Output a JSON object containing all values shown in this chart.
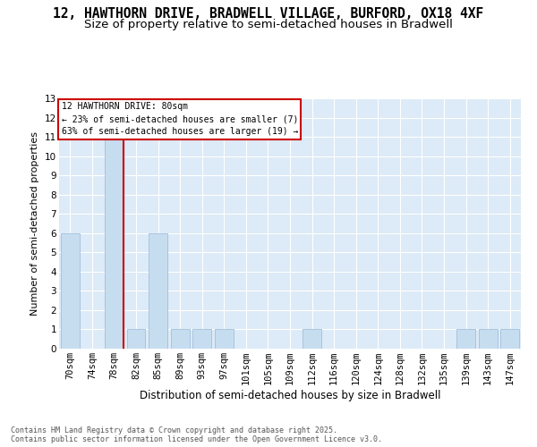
{
  "title1": "12, HAWTHORN DRIVE, BRADWELL VILLAGE, BURFORD, OX18 4XF",
  "title2": "Size of property relative to semi-detached houses in Bradwell",
  "xlabel": "Distribution of semi-detached houses by size in Bradwell",
  "ylabel": "Number of semi-detached properties",
  "categories": [
    "70sqm",
    "74sqm",
    "78sqm",
    "82sqm",
    "85sqm",
    "89sqm",
    "93sqm",
    "97sqm",
    "101sqm",
    "105sqm",
    "109sqm",
    "112sqm",
    "116sqm",
    "120sqm",
    "124sqm",
    "128sqm",
    "132sqm",
    "135sqm",
    "139sqm",
    "143sqm",
    "147sqm"
  ],
  "values": [
    6,
    0,
    11,
    1,
    6,
    1,
    1,
    1,
    0,
    0,
    0,
    1,
    0,
    0,
    0,
    0,
    0,
    0,
    1,
    1,
    1
  ],
  "highlight_index": 2,
  "bar_color": "#c6ddf0",
  "bar_edge_color": "#a0bedd",
  "highlight_line_color": "#cc0000",
  "annotation_line1": "12 HAWTHORN DRIVE: 80sqm",
  "annotation_line2": "← 23% of semi-detached houses are smaller (7)",
  "annotation_line3": "63% of semi-detached houses are larger (19) →",
  "annotation_box_color": "white",
  "annotation_box_edge": "#cc0000",
  "footer_text": "Contains HM Land Registry data © Crown copyright and database right 2025.\nContains public sector information licensed under the Open Government Licence v3.0.",
  "ylim_max": 13,
  "fig_bg": "#ffffff",
  "plot_bg": "#ddeaf7",
  "grid_color": "#ffffff",
  "title1_fontsize": 10.5,
  "title2_fontsize": 9.5,
  "ylabel_fontsize": 8,
  "xlabel_fontsize": 8.5,
  "tick_fontsize": 7.5,
  "footer_fontsize": 6.0
}
